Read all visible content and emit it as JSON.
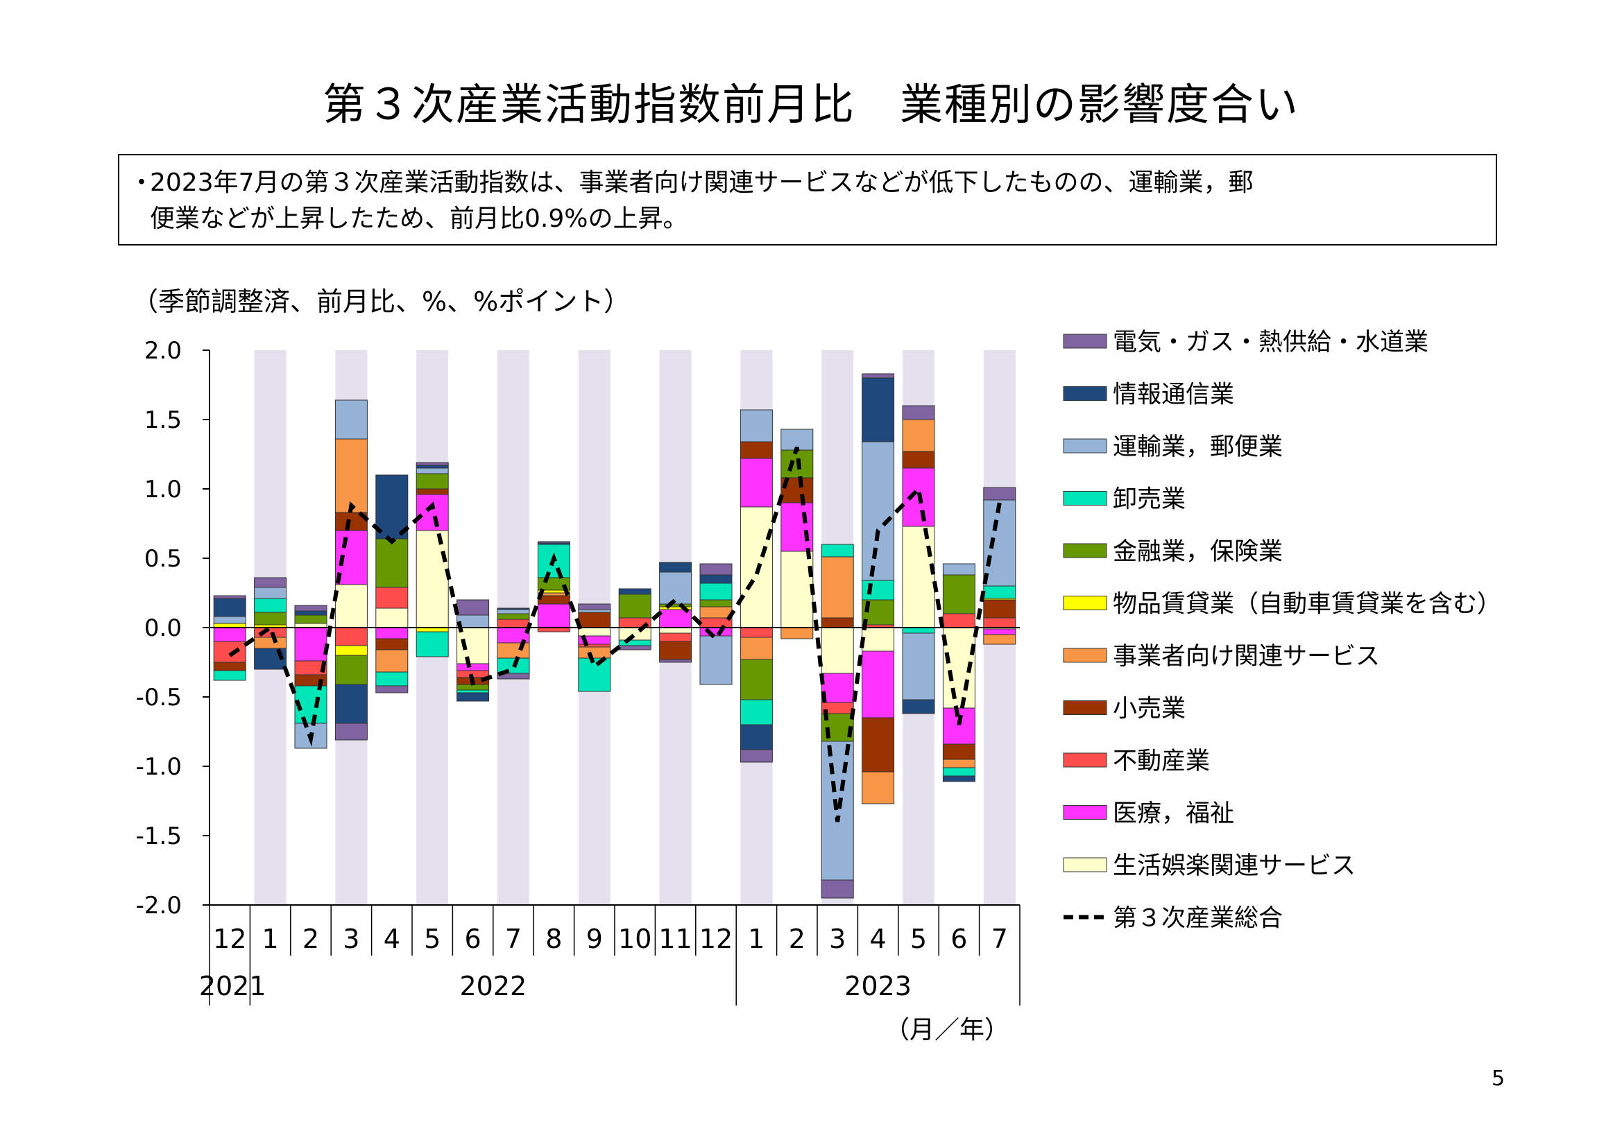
{
  "title": "第３次産業活動指数前月比　業種別の影響度合い",
  "summary": {
    "bullet": "・",
    "line1": "2023年7月の第３次産業活動指数は、事業者向け関連サービスなどが低下したものの、運輸業，郵",
    "line2": "便業などが上昇したため、前月比0.9%の上昇。"
  },
  "unit_label": "（季節調整済、前月比、%、%ポイント）",
  "page_number": "5",
  "chart_data": {
    "type": "bar",
    "stacked": true,
    "x_axis_title": "（月／年）",
    "y_tick_labels": [
      "2.0",
      "1.5",
      "1.0",
      "0.5",
      "0.0",
      "-0.5",
      "-1.0",
      "-1.5",
      "-2.0"
    ],
    "ylim": [
      -2.0,
      2.0
    ],
    "categories": [
      "12",
      "1",
      "2",
      "3",
      "4",
      "5",
      "6",
      "7",
      "8",
      "9",
      "10",
      "11",
      "12",
      "1",
      "2",
      "3",
      "4",
      "5",
      "6",
      "7"
    ],
    "year_labels": [
      "2021",
      "2022",
      "2023"
    ],
    "series": [
      {
        "name": "生活娯楽関連サービス",
        "color": "#ffffcc",
        "values": [
          0.0,
          0.0,
          0.03,
          0.31,
          0.14,
          0.7,
          -0.26,
          0.0,
          0.0,
          -0.06,
          -0.09,
          -0.04,
          0.0,
          0.87,
          0.55,
          -0.33,
          -0.17,
          0.73,
          -0.58,
          -0.01
        ]
      },
      {
        "name": "医療，福祉",
        "color": "#ff33ff",
        "values": [
          -0.1,
          0.0,
          -0.24,
          0.39,
          -0.08,
          0.26,
          -0.05,
          -0.11,
          0.17,
          -0.06,
          0.0,
          0.13,
          -0.06,
          0.35,
          0.35,
          -0.21,
          -0.48,
          0.42,
          -0.26,
          -0.04
        ]
      },
      {
        "name": "不動産業",
        "color": "#ff4d4d",
        "values": [
          -0.15,
          -0.07,
          -0.1,
          -0.13,
          0.15,
          0.0,
          -0.05,
          0.06,
          -0.03,
          -0.02,
          0.07,
          -0.06,
          0.07,
          -0.07,
          0.0,
          -0.08,
          0.02,
          0.0,
          0.1,
          0.07
        ]
      },
      {
        "name": "小売業",
        "color": "#993300",
        "values": [
          -0.06,
          0.0,
          -0.08,
          0.13,
          -0.08,
          0.04,
          -0.05,
          0.0,
          0.06,
          0.11,
          0.0,
          -0.13,
          0.0,
          0.12,
          0.18,
          0.07,
          -0.39,
          0.12,
          -0.11,
          0.13
        ]
      },
      {
        "name": "事業者向け関連サービス",
        "color": "#f79646",
        "values": [
          0.0,
          -0.08,
          0.0,
          0.53,
          -0.16,
          0.0,
          0.0,
          -0.11,
          0.02,
          -0.08,
          0.0,
          0.0,
          0.08,
          -0.16,
          -0.08,
          0.44,
          -0.23,
          0.23,
          -0.06,
          -0.07
        ]
      },
      {
        "name": "物品賃貸業（自動車賃貸業を含む）",
        "color": "#ffff00",
        "values": [
          0.03,
          0.02,
          0.0,
          -0.07,
          0.0,
          -0.03,
          0.0,
          0.0,
          0.02,
          0.0,
          0.0,
          0.02,
          0.0,
          0.0,
          0.0,
          0.0,
          0.0,
          0.0,
          0.0,
          0.01
        ]
      },
      {
        "name": "金融業，保険業",
        "color": "#669900",
        "values": [
          0.0,
          0.09,
          0.06,
          -0.21,
          0.35,
          0.11,
          -0.04,
          0.04,
          0.09,
          0.0,
          0.17,
          0.02,
          0.05,
          -0.29,
          0.2,
          -0.2,
          0.18,
          0.0,
          0.28,
          0.0
        ]
      },
      {
        "name": "卸売業",
        "color": "#00e6b8",
        "values": [
          -0.07,
          0.1,
          -0.27,
          0.0,
          -0.1,
          -0.18,
          -0.02,
          -0.11,
          0.24,
          -0.24,
          -0.04,
          0.0,
          0.12,
          -0.18,
          0.0,
          0.09,
          0.14,
          -0.04,
          -0.06,
          0.09
        ]
      },
      {
        "name": "運輸業，郵便業",
        "color": "#95b3d7",
        "values": [
          0.05,
          0.08,
          -0.18,
          0.28,
          0.0,
          0.04,
          0.09,
          0.03,
          0.0,
          0.02,
          0.0,
          0.23,
          -0.35,
          0.23,
          0.15,
          -1.0,
          1.0,
          -0.48,
          0.08,
          0.62
        ]
      },
      {
        "name": "情報通信業",
        "color": "#1f497d",
        "values": [
          0.13,
          -0.15,
          0.03,
          -0.28,
          0.46,
          0.02,
          -0.06,
          0.01,
          0.01,
          0.0,
          0.04,
          0.07,
          0.06,
          -0.18,
          0.0,
          0.0,
          0.46,
          -0.1,
          -0.04,
          0.0
        ]
      },
      {
        "name": "電気・ガス・熱供給・水道業",
        "color": "#8064a2",
        "values": [
          0.02,
          0.07,
          0.04,
          -0.12,
          -0.05,
          0.02,
          0.11,
          -0.04,
          0.01,
          0.04,
          -0.03,
          -0.02,
          0.08,
          -0.09,
          0.0,
          -0.13,
          0.03,
          0.1,
          0.0,
          0.09
        ]
      }
    ],
    "total": {
      "name": "第３次産業総合",
      "style": "dashed",
      "color": "#000000",
      "values": [
        -0.2,
        0.0,
        -0.8,
        0.88,
        0.62,
        0.88,
        -0.4,
        -0.3,
        0.5,
        -0.28,
        -0.05,
        0.2,
        -0.08,
        0.38,
        1.3,
        -1.4,
        0.7,
        1.0,
        -0.7,
        0.9
      ]
    },
    "legend_order": [
      "電気・ガス・熱供給・水道業",
      "情報通信業",
      "運輸業，郵便業",
      "卸売業",
      "金融業，保険業",
      "物品賃貸業（自動車賃貸業を含む）",
      "事業者向け関連サービス",
      "小売業",
      "不動産業",
      "医療，福祉",
      "生活娯楽関連サービス",
      "第３次産業総合"
    ],
    "shading_color": "#e4e0ee"
  }
}
